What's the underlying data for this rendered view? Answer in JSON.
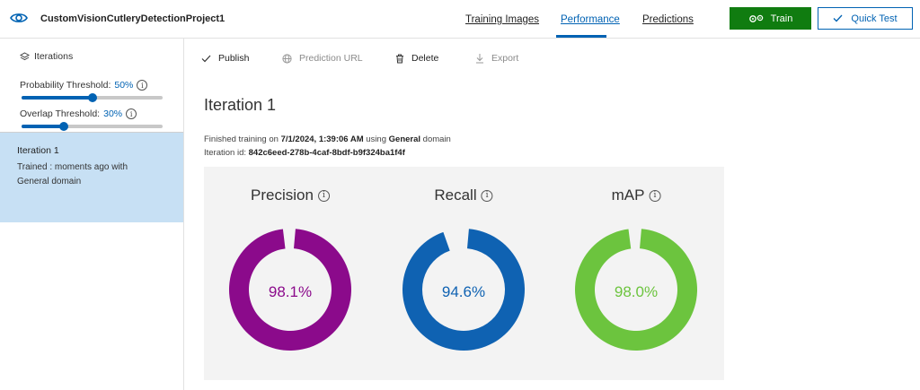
{
  "header": {
    "project_name": "CustomVisionCutleryDetectionProject1",
    "tabs": [
      {
        "label": "Training Images"
      },
      {
        "label": "Performance"
      },
      {
        "label": "Predictions"
      }
    ],
    "train_label": "Train",
    "quick_test_label": "Quick Test"
  },
  "sidebar": {
    "heading": "Iterations",
    "probability_label": "Probability Threshold:",
    "probability_value": "50%",
    "probability_level": 0.5,
    "overlap_label": "Overlap Threshold:",
    "overlap_value": "30%",
    "overlap_level": 0.3,
    "iteration": {
      "name": "Iteration 1",
      "description": "Trained : moments ago with General domain"
    }
  },
  "toolbar": {
    "publish": "Publish",
    "prediction_url": "Prediction URL",
    "delete": "Delete",
    "export": "Export"
  },
  "main": {
    "title": "Iteration 1",
    "meta_prefix": "Finished training on",
    "meta_date": "7/1/2024, 1:39:06 AM",
    "meta_using": "using",
    "meta_domain": "General",
    "meta_suffix": "domain",
    "id_label": "Iteration id:",
    "id_value": "842c6eed-278b-4caf-8bdf-b9f324ba1f4f"
  },
  "metrics": [
    {
      "name": "Precision",
      "value_text": "98.1%",
      "value": 98.1,
      "color": "#8b0a8b"
    },
    {
      "name": "Recall",
      "value_text": "94.6%",
      "value": 94.6,
      "color": "#0f62b2"
    },
    {
      "name": "mAP",
      "value_text": "98.0%",
      "value": 98.0,
      "color": "#6cc43e"
    }
  ],
  "colors": {
    "accent": "#0062b3",
    "train_green": "#107c10",
    "selected_bg": "#c7e0f4"
  }
}
